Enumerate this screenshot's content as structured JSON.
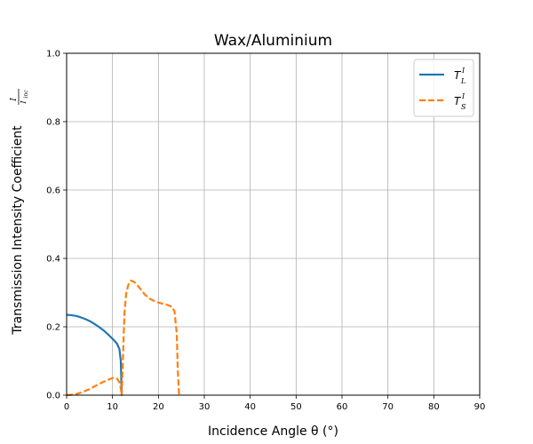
{
  "chart_data": {
    "type": "line",
    "title": "Wax/Aluminium",
    "xlabel": "Incidence Angle θ (°)",
    "ylabel": "Transmission Intensity Coefficient",
    "ylabel_fraction": {
      "numerator": "I",
      "denominator": "I",
      "denominator_sub": "inc"
    },
    "xlim": [
      0,
      90
    ],
    "ylim": [
      0,
      1.0
    ],
    "xticks": [
      "0",
      "10",
      "20",
      "30",
      "40",
      "50",
      "60",
      "70",
      "80",
      "90"
    ],
    "yticks": [
      "0.0",
      "0.2",
      "0.4",
      "0.6",
      "0.8",
      "1.0"
    ],
    "grid": true,
    "legend_position": "top-right",
    "series": [
      {
        "name": "T_L^I",
        "legend_main": "T",
        "legend_sup": "I",
        "legend_sub": "L",
        "color": "#1f77b4",
        "style": "solid",
        "x": [
          0,
          1,
          2,
          3,
          4,
          5,
          6,
          7,
          8,
          9,
          10,
          10.5,
          11,
          11.5,
          11.8,
          12.0
        ],
        "y": [
          0.235,
          0.234,
          0.232,
          0.228,
          0.223,
          0.217,
          0.209,
          0.2,
          0.19,
          0.178,
          0.165,
          0.158,
          0.15,
          0.135,
          0.1,
          0.0
        ]
      },
      {
        "name": "T_S^I",
        "legend_main": "T",
        "legend_sup": "I",
        "legend_sub": "S",
        "color": "#ff7f0e",
        "style": "dashed",
        "x": [
          0,
          1,
          2,
          3,
          4,
          5,
          6,
          7,
          8,
          9,
          10,
          10.5,
          11,
          11.5,
          11.8,
          12.0,
          12.3,
          12.6,
          13.0,
          13.5,
          14.0,
          14.5,
          15,
          16,
          17,
          18,
          19,
          20,
          21,
          22,
          23,
          23.5,
          24.0,
          24.2,
          24.5
        ],
        "y": [
          0.0,
          0.001,
          0.003,
          0.007,
          0.012,
          0.018,
          0.025,
          0.032,
          0.039,
          0.045,
          0.05,
          0.051,
          0.048,
          0.038,
          0.02,
          0.0,
          0.12,
          0.24,
          0.3,
          0.325,
          0.335,
          0.333,
          0.328,
          0.312,
          0.295,
          0.283,
          0.276,
          0.271,
          0.267,
          0.264,
          0.258,
          0.245,
          0.18,
          0.08,
          0.0
        ]
      }
    ]
  }
}
